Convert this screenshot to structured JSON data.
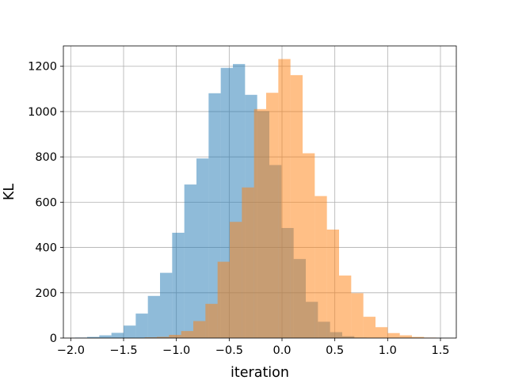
{
  "chart_data": {
    "type": "bar",
    "subtype": "overlapping histogram",
    "title": "",
    "xlabel": "iteration",
    "ylabel": "KL",
    "xlim": [
      -2.07,
      1.65
    ],
    "ylim": [
      0,
      1290
    ],
    "xticks": [
      -2.0,
      -1.5,
      -1.0,
      -0.5,
      0.0,
      0.5,
      1.0,
      1.5
    ],
    "xtick_labels": [
      "−2.0",
      "−1.5",
      "−1.0",
      "−0.5",
      "0.0",
      "0.5",
      "1.0",
      "1.5"
    ],
    "yticks": [
      0,
      200,
      400,
      600,
      800,
      1000,
      1200
    ],
    "ytick_labels": [
      "0",
      "200",
      "400",
      "600",
      "800",
      "1000",
      "1200"
    ],
    "grid": true,
    "legend": false,
    "series": [
      {
        "color": "#1f77b4",
        "opacity": 0.5,
        "bin_edges": [
          -1.96,
          -1.845,
          -1.73,
          -1.615,
          -1.5,
          -1.385,
          -1.27,
          -1.155,
          -1.04,
          -0.925,
          -0.81,
          -0.695,
          -0.58,
          -0.465,
          -0.35,
          -0.235,
          -0.12,
          -0.005,
          0.11,
          0.225,
          0.34,
          0.455,
          0.57,
          0.685,
          0.8
        ],
        "counts": [
          2,
          5,
          12,
          23,
          55,
          108,
          186,
          288,
          465,
          678,
          793,
          1081,
          1193,
          1210,
          1074,
          1002,
          764,
          486,
          349,
          160,
          72,
          26,
          8,
          2
        ]
      },
      {
        "color": "#ff7f0e",
        "opacity": 0.5,
        "bin_edges": [
          -1.3,
          -1.185,
          -1.07,
          -0.955,
          -0.84,
          -0.725,
          -0.61,
          -0.495,
          -0.38,
          -0.265,
          -0.15,
          -0.035,
          0.08,
          0.195,
          0.31,
          0.425,
          0.54,
          0.655,
          0.77,
          0.885,
          1.0,
          1.115,
          1.23,
          1.345,
          1.46
        ],
        "counts": [
          3,
          5,
          14,
          31,
          75,
          151,
          337,
          513,
          665,
          1011,
          1083,
          1232,
          1161,
          816,
          627,
          479,
          276,
          198,
          94,
          48,
          22,
          12,
          5,
          2
        ]
      }
    ]
  }
}
